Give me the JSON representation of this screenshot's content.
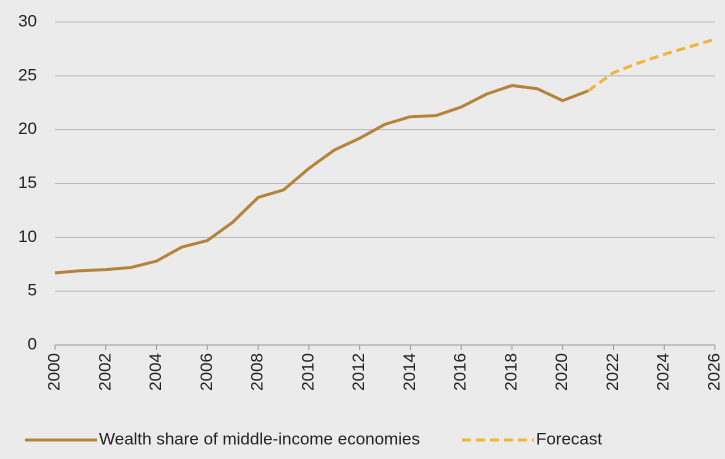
{
  "chart_data": {
    "type": "line",
    "x": [
      2000,
      2001,
      2002,
      2003,
      2004,
      2005,
      2006,
      2007,
      2008,
      2009,
      2010,
      2011,
      2012,
      2013,
      2014,
      2015,
      2016,
      2017,
      2018,
      2019,
      2020,
      2021,
      2022,
      2023,
      2024,
      2025,
      2026
    ],
    "series": [
      {
        "name": "Wealth share of middle-income economies",
        "color": "#b5843a",
        "dashed": false,
        "values": [
          6.7,
          6.9,
          7.0,
          7.2,
          7.8,
          9.1,
          9.7,
          11.4,
          13.7,
          14.4,
          16.4,
          18.1,
          19.2,
          20.5,
          21.2,
          21.3,
          22.1,
          23.3,
          24.1,
          23.8,
          22.7,
          23.6,
          null,
          null,
          null,
          null,
          null
        ]
      },
      {
        "name": "Forecast",
        "color": "#f0b43a",
        "dashed": true,
        "values": [
          null,
          null,
          null,
          null,
          null,
          null,
          null,
          null,
          null,
          null,
          null,
          null,
          null,
          null,
          null,
          null,
          null,
          null,
          null,
          null,
          null,
          23.6,
          25.3,
          26.2,
          27.0,
          27.7,
          28.4
        ]
      }
    ],
    "xlim": [
      2000,
      2026
    ],
    "xticks": [
      2000,
      2002,
      2004,
      2006,
      2008,
      2010,
      2012,
      2014,
      2016,
      2018,
      2020,
      2022,
      2024,
      2026
    ],
    "ylim": [
      0,
      30
    ],
    "yticks": [
      0,
      5,
      10,
      15,
      20,
      25,
      30
    ],
    "grid": true
  }
}
